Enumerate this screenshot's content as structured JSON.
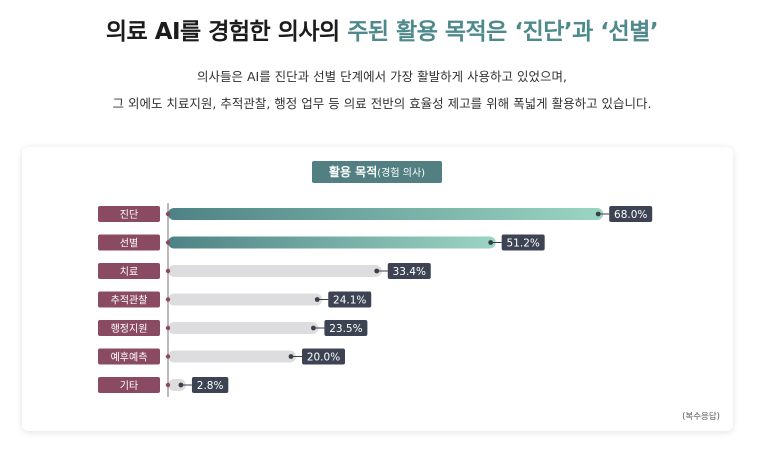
{
  "header": {
    "title_prefix": "의료 AI를 경험한 의사의 ",
    "title_accent": "주된 활용 목적은 ‘진단’과 ‘선별’",
    "desc_line1": "의사들은 AI를 진단과 선별 단계에서 가장 활발하게 사용하고 있었으며,",
    "desc_line2": "그 외에도 치료지원, 추적관찰, 행정 업무 등 의료 전반의 효율성 제고를 위해 폭넓게 활용하고 있습니다."
  },
  "chart_title_main": "활용 목적",
  "chart_title_sub": "(경험 의사)",
  "note": "(복수응답)",
  "colors": {
    "label_bg": "#8a4b62",
    "highlight_start": "#4e8285",
    "highlight_end": "#9bd5c2",
    "bar_gray": "#dddcdf",
    "value_bg": "#3d4352"
  },
  "chart_data": {
    "type": "bar",
    "orientation": "horizontal",
    "categories": [
      "진단",
      "선별",
      "치료",
      "추적관찰",
      "행정지원",
      "예후예측",
      "기타"
    ],
    "values": [
      68.0,
      51.2,
      33.4,
      24.1,
      23.5,
      20.0,
      2.8
    ],
    "value_labels": [
      "68.0%",
      "51.2%",
      "33.4%",
      "24.1%",
      "23.5%",
      "20.0%",
      "2.8%"
    ],
    "highlighted": [
      true,
      true,
      false,
      false,
      false,
      false,
      false
    ],
    "title": "활용 목적(경험 의사)",
    "xlim": [
      0,
      100
    ]
  }
}
